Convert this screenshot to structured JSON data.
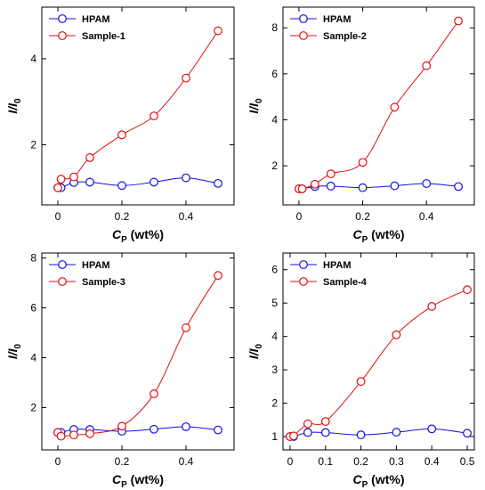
{
  "chart_data": [
    {
      "type": "line",
      "ylabel": "I/I0",
      "ylabel_main": "I/I",
      "ylabel_sub": "0",
      "xlabel": "CP (wt%)",
      "xlabel_main": "C",
      "xlabel_sub": "P",
      "xlabel_rest": " (wt%)",
      "xlim": [
        -0.05,
        0.55
      ],
      "ylim": [
        0.6,
        5.2
      ],
      "xticks": [
        0,
        0.2,
        0.4
      ],
      "xtick_labels": [
        "0",
        "0.2",
        "0.4"
      ],
      "yticks": [
        2,
        4
      ],
      "ytick_labels": [
        "2",
        "4"
      ],
      "legend_position": "top-left",
      "series": [
        {
          "name": "HPAM",
          "color": "#1010e0",
          "x": [
            0,
            0.01,
            0.05,
            0.1,
            0.2,
            0.3,
            0.4,
            0.5
          ],
          "y": [
            1.0,
            1.0,
            1.12,
            1.13,
            1.05,
            1.13,
            1.23,
            1.1
          ]
        },
        {
          "name": "Sample-1",
          "color": "#e01010",
          "x": [
            0,
            0.01,
            0.05,
            0.1,
            0.2,
            0.3,
            0.4,
            0.5
          ],
          "y": [
            1.0,
            1.2,
            1.25,
            1.7,
            2.23,
            2.67,
            3.55,
            4.65
          ]
        }
      ]
    },
    {
      "type": "line",
      "ylabel": "I/I0",
      "ylabel_main": "I/I",
      "ylabel_sub": "0",
      "xlabel": "CP (wt%)",
      "xlabel_main": "C",
      "xlabel_sub": "P",
      "xlabel_rest": " (wt%)",
      "xlim": [
        -0.05,
        0.55
      ],
      "ylim": [
        0.3,
        8.9
      ],
      "xticks": [
        0,
        0.2,
        0.4
      ],
      "xtick_labels": [
        "0",
        "0.2",
        "0.4"
      ],
      "yticks": [
        2,
        4,
        6,
        8
      ],
      "ytick_labels": [
        "2",
        "4",
        "6",
        "8"
      ],
      "legend_position": "top-left",
      "series": [
        {
          "name": "HPAM",
          "color": "#1010e0",
          "x": [
            0,
            0.01,
            0.05,
            0.1,
            0.2,
            0.3,
            0.4,
            0.5
          ],
          "y": [
            1.0,
            1.0,
            1.1,
            1.12,
            1.05,
            1.13,
            1.23,
            1.1
          ]
        },
        {
          "name": "Sample-2",
          "color": "#e01010",
          "x": [
            0,
            0.01,
            0.05,
            0.1,
            0.2,
            0.3,
            0.4,
            0.5
          ],
          "y": [
            1.0,
            1.0,
            1.2,
            1.65,
            2.15,
            4.55,
            6.35,
            8.3
          ]
        }
      ]
    },
    {
      "type": "line",
      "ylabel": "I/I0",
      "ylabel_main": "I/I",
      "ylabel_sub": "0",
      "xlabel": "CP (wt%)",
      "xlabel_main": "C",
      "xlabel_sub": "P",
      "xlabel_rest": " (wt%)",
      "xlim": [
        -0.05,
        0.55
      ],
      "ylim": [
        0.3,
        8.2
      ],
      "xticks": [
        0,
        0.2,
        0.4
      ],
      "xtick_labels": [
        "0",
        "0.2",
        "0.4"
      ],
      "yticks": [
        2,
        4,
        6,
        8
      ],
      "ytick_labels": [
        "2",
        "4",
        "6",
        "8"
      ],
      "legend_position": "top-left",
      "series": [
        {
          "name": "HPAM",
          "color": "#1010e0",
          "x": [
            0,
            0.01,
            0.05,
            0.1,
            0.2,
            0.3,
            0.4,
            0.5
          ],
          "y": [
            1.0,
            1.0,
            1.12,
            1.12,
            1.05,
            1.13,
            1.23,
            1.1
          ]
        },
        {
          "name": "Sample-3",
          "color": "#e01010",
          "x": [
            0,
            0.01,
            0.05,
            0.1,
            0.2,
            0.3,
            0.4,
            0.5
          ],
          "y": [
            1.0,
            0.85,
            0.9,
            0.95,
            1.25,
            2.55,
            5.2,
            7.3
          ]
        }
      ]
    },
    {
      "type": "line",
      "ylabel": "I/I0",
      "ylabel_main": "I/I",
      "ylabel_sub": "0",
      "xlabel": "CP (wt%)",
      "xlabel_main": "C",
      "xlabel_sub": "P",
      "xlabel_rest": " (wt%)",
      "xlim": [
        -0.02,
        0.52
      ],
      "ylim": [
        0.6,
        6.5
      ],
      "xticks": [
        0,
        0.1,
        0.2,
        0.3,
        0.4,
        0.5
      ],
      "xtick_labels": [
        "0",
        "0.1",
        "0.2",
        "0.3",
        "0.4",
        "0.5"
      ],
      "yticks": [
        1,
        2,
        3,
        4,
        5,
        6
      ],
      "ytick_labels": [
        "1",
        "2",
        "3",
        "4",
        "5",
        "6"
      ],
      "legend_position": "top-left",
      "series": [
        {
          "name": "HPAM",
          "color": "#1010e0",
          "x": [
            0,
            0.01,
            0.05,
            0.1,
            0.2,
            0.3,
            0.4,
            0.5
          ],
          "y": [
            1.0,
            1.0,
            1.12,
            1.12,
            1.05,
            1.13,
            1.23,
            1.1
          ]
        },
        {
          "name": "Sample-4",
          "color": "#e01010",
          "x": [
            0,
            0.01,
            0.05,
            0.1,
            0.2,
            0.3,
            0.4,
            0.5
          ],
          "y": [
            1.0,
            1.02,
            1.38,
            1.45,
            2.65,
            4.05,
            4.9,
            5.4
          ]
        }
      ]
    }
  ]
}
